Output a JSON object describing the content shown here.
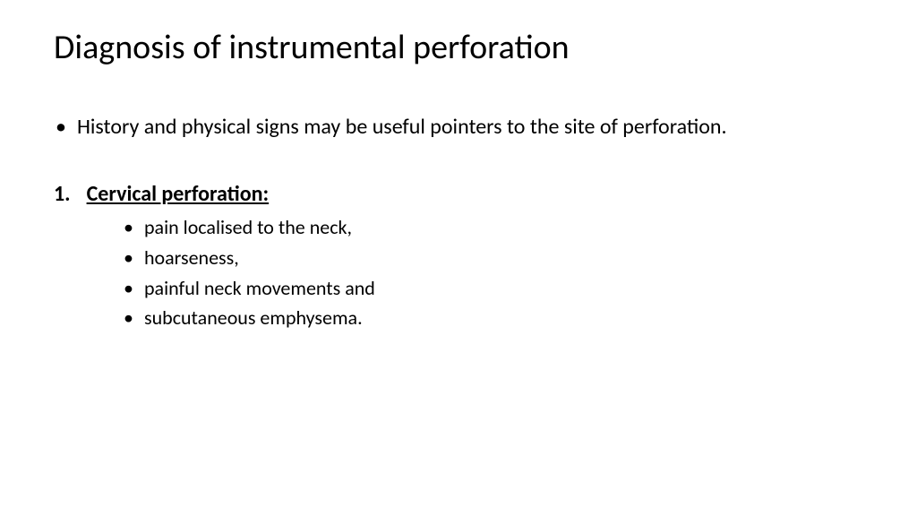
{
  "slide": {
    "title": "Diagnosis of instrumental perforation",
    "intro": "History and physical signs may be useful pointers to the site of perforation.",
    "section": {
      "number": "1.",
      "heading": "Cervical perforation:",
      "items": [
        "pain localised to the neck,",
        "hoarseness,",
        "painful neck movements and",
        "subcutaneous emphysema."
      ]
    }
  },
  "style": {
    "background_color": "#ffffff",
    "text_color": "#000000",
    "title_fontsize": 38,
    "body_fontsize": 24,
    "sub_fontsize": 22,
    "font_family": "Calibri"
  }
}
